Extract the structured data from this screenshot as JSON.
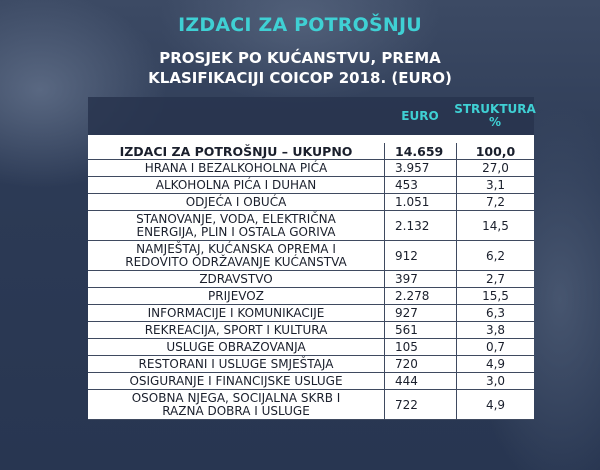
{
  "title": "IZDACI ZA POTROŠNJU",
  "subtitle_line1": "PROSJEK PO KUĆANSTVU, PREMA",
  "subtitle_line2": "KLASIFIKACIJI COICOP 2018. (EURO)",
  "table": {
    "headers": {
      "euro": "EURO",
      "struktura_line1": "STRUKTURA",
      "struktura_line2": "%"
    },
    "total": {
      "label": "IZDACI ZA POTROŠNJU – UKUPNO",
      "euro": "14.659",
      "pct": "100,0"
    },
    "rows": [
      {
        "label": [
          "HRANA I BEZALKOHOLNA PIĆA"
        ],
        "euro": "3.957",
        "pct": "27,0"
      },
      {
        "label": [
          "ALKOHOLNA PIĆA I DUHAN"
        ],
        "euro": "453",
        "pct": "3,1"
      },
      {
        "label": [
          "ODJEĆA I OBUĆA"
        ],
        "euro": "1.051",
        "pct": "7,2"
      },
      {
        "label": [
          "STANOVANJE, VODA, ELEKTRIČNA",
          "ENERGIJA, PLIN I OSTALA GORIVA"
        ],
        "euro": "2.132",
        "pct": "14,5"
      },
      {
        "label": [
          "NAMJEŠTAJ, KUĆANSKA OPREMA I",
          "REDOVITO ODRŽAVANJE KUĆANSTVA"
        ],
        "euro": "912",
        "pct": "6,2"
      },
      {
        "label": [
          "ZDRAVSTVO"
        ],
        "euro": "397",
        "pct": "2,7"
      },
      {
        "label": [
          "PRIJEVOZ"
        ],
        "euro": "2.278",
        "pct": "15,5"
      },
      {
        "label": [
          "INFORMACIJE I KOMUNIKACIJE"
        ],
        "euro": "927",
        "pct": "6,3"
      },
      {
        "label": [
          "REKREACIJA, SPORT I KULTURA"
        ],
        "euro": "561",
        "pct": "3,8"
      },
      {
        "label": [
          "USLUGE OBRAZOVANJA"
        ],
        "euro": "105",
        "pct": "0,7"
      },
      {
        "label": [
          "RESTORANI I USLUGE SMJEŠTAJA"
        ],
        "euro": "720",
        "pct": "4,9"
      },
      {
        "label": [
          "OSIGURANJE I FINANCIJSKE USLUGE"
        ],
        "euro": "444",
        "pct": "3,0"
      },
      {
        "label": [
          "OSOBNA NJEGA, SOCIJALNA SKRB I",
          "RAZNA DOBRA I USLUGE"
        ],
        "euro": "722",
        "pct": "4,9"
      }
    ]
  },
  "colors": {
    "accent": "#3fd0d4",
    "background": "#2f3d57",
    "table_bg": "#ffffff",
    "text": "#1a1f2c"
  }
}
